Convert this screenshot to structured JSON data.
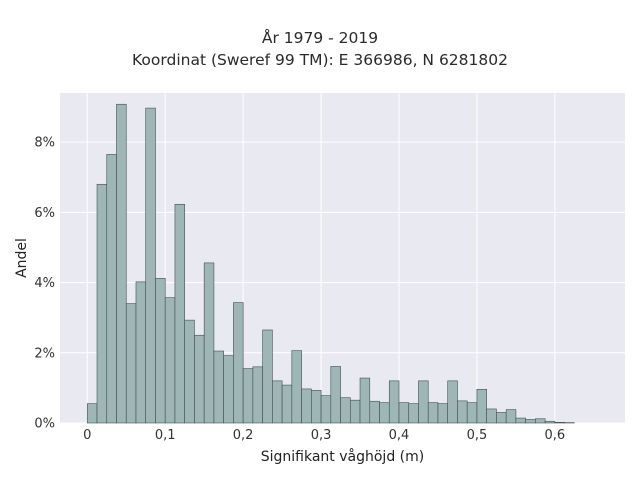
{
  "title_line1": "År 1979 - 2019",
  "title_line2": "Koordinat (Sweref 99 TM): E 366986, N 6281802",
  "chart_data": {
    "type": "bar",
    "xlabel": "Signifikant våghöjd (m)",
    "ylabel": "Andel",
    "xlim": [
      -0.035,
      0.69
    ],
    "ylim": [
      0,
      9.4
    ],
    "bin_width": 0.0125,
    "bin_start": 0,
    "x_ticks": [
      0,
      0.1,
      0.2,
      0.3,
      0.4,
      0.5,
      0.6
    ],
    "x_tick_labels": [
      "0",
      "0,1",
      "0,2",
      "0,3",
      "0,4",
      "0,5",
      "0,6"
    ],
    "y_ticks": [
      0,
      2,
      4,
      6,
      8
    ],
    "y_tick_labels": [
      "0%",
      "2%",
      "4%",
      "6%",
      "8%"
    ],
    "values": [
      0.55,
      6.8,
      7.65,
      9.08,
      3.4,
      4.02,
      8.97,
      4.12,
      3.57,
      6.23,
      2.93,
      2.5,
      4.56,
      2.05,
      1.92,
      3.43,
      1.55,
      1.6,
      2.65,
      1.2,
      1.08,
      2.06,
      0.97,
      0.93,
      0.78,
      1.61,
      0.72,
      0.65,
      1.28,
      0.62,
      0.58,
      1.2,
      0.58,
      0.55,
      1.2,
      0.58,
      0.55,
      1.2,
      0.63,
      0.58,
      0.96,
      0.4,
      0.3,
      0.38,
      0.14,
      0.1,
      0.12,
      0.05,
      0.02,
      0.01
    ],
    "bar_color": "#9fb6b6",
    "bar_edge": "#3f4f4f",
    "background": "#e9e9f1",
    "grid": true
  }
}
